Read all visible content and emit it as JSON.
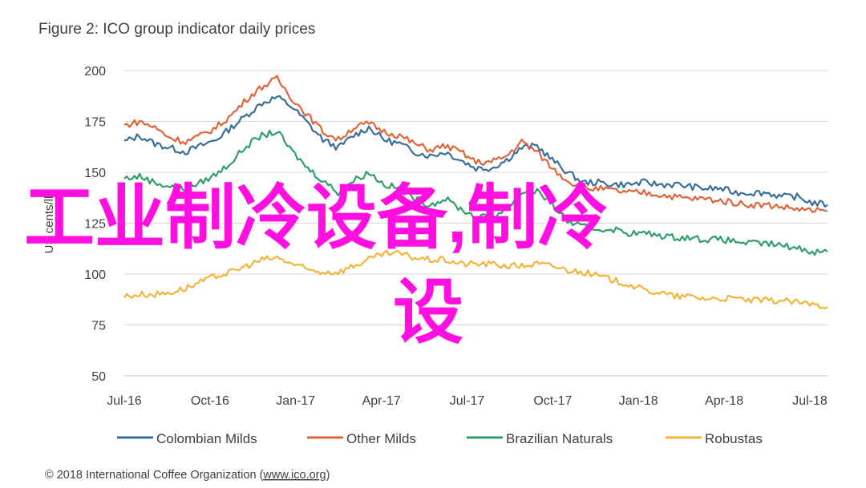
{
  "chart_data": {
    "type": "line",
    "title": "Figure 2: ICO group indicator daily prices",
    "ylabel": "US cents/lb",
    "xlabel": "",
    "ylim": [
      50,
      200
    ],
    "yticks": [
      "200",
      "175",
      "150",
      "125",
      "100",
      "75",
      "50"
    ],
    "x_tick_labels": [
      "Jul-16",
      "Oct-16",
      "Jan-17",
      "Apr-17",
      "Jul-17",
      "Oct-17",
      "Jan-18",
      "Apr-18",
      "Jul-18"
    ],
    "grid": true,
    "legend_position": "bottom",
    "series": [
      {
        "name": "Colombian Milds",
        "color": "#3a6e9a",
        "values": [
          165,
          168,
          164,
          162,
          160,
          163,
          166,
          172,
          178,
          184,
          187,
          182,
          174,
          166,
          162,
          168,
          172,
          166,
          164,
          160,
          158,
          160,
          156,
          152,
          152,
          156,
          162,
          163,
          156,
          150,
          145,
          145,
          144,
          144,
          145,
          144,
          144,
          143,
          142,
          142,
          140,
          140,
          140,
          138,
          138,
          135,
          134
        ]
      },
      {
        "name": "Other Milds",
        "color": "#e0643a",
        "values": [
          173,
          175,
          172,
          167,
          165,
          168,
          172,
          178,
          186,
          192,
          196,
          186,
          178,
          170,
          166,
          172,
          174,
          170,
          168,
          164,
          161,
          163,
          160,
          155,
          155,
          158,
          165,
          160,
          152,
          146,
          142,
          142,
          141,
          140,
          140,
          139,
          138,
          137,
          137,
          136,
          135,
          134,
          134,
          133,
          132,
          131,
          131
        ]
      },
      {
        "name": "Brazilian Naturals",
        "color": "#2e9e6a",
        "values": [
          147,
          148,
          145,
          143,
          142,
          145,
          149,
          155,
          163,
          168,
          170,
          160,
          152,
          146,
          140,
          146,
          150,
          144,
          142,
          137,
          134,
          137,
          132,
          128,
          128,
          132,
          140,
          141,
          134,
          126,
          123,
          122,
          122,
          120,
          120,
          119,
          118,
          118,
          117,
          117,
          116,
          115,
          115,
          114,
          113,
          111,
          111
        ]
      },
      {
        "name": "Robustas",
        "color": "#f2b43a",
        "values": [
          89,
          90,
          90,
          91,
          93,
          96,
          99,
          101,
          104,
          107,
          108,
          105,
          102,
          101,
          101,
          104,
          107,
          110,
          110,
          108,
          107,
          107,
          105,
          105,
          105,
          104,
          104,
          105,
          104,
          102,
          101,
          99,
          97,
          95,
          92,
          91,
          89,
          89,
          88,
          88,
          88,
          87,
          87,
          87,
          86,
          85,
          84
        ]
      }
    ]
  },
  "footer": "© 2018 International Coffee Organization (",
  "footer_link": "www.ico.org",
  "footer_end": ")",
  "overlay_line1": "工业制冷设备,制冷",
  "overlay_line2": "设"
}
